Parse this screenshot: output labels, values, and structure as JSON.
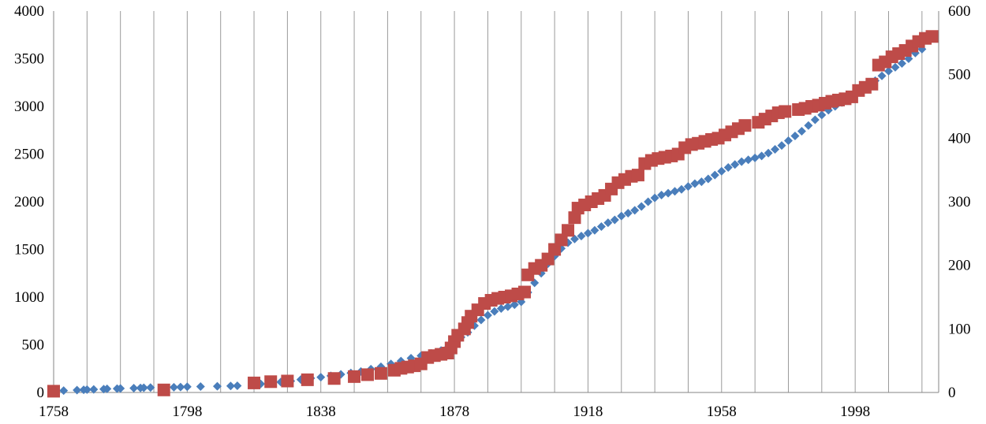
{
  "chart_data": {
    "type": "scatter",
    "title": "",
    "xlabel": "",
    "ylabel": "",
    "xlim": [
      1758,
      2023
    ],
    "ylim": [
      0,
      4000
    ],
    "y2lim": [
      0,
      600
    ],
    "x_ticks": [
      1758,
      1798,
      1838,
      1878,
      1918,
      1958,
      1998
    ],
    "y_ticks": [
      0,
      500,
      1000,
      1500,
      2000,
      2500,
      3000,
      3500,
      4000
    ],
    "y2_ticks": [
      0,
      100,
      200,
      300,
      400,
      500,
      600
    ],
    "vertical_gridlines_every": 10,
    "grid_x": true,
    "grid_y": false,
    "legend": "none",
    "series": [
      {
        "axis": "left",
        "marker": "diamond",
        "color": "#4a7ebb",
        "points": [
          [
            1761,
            20
          ],
          [
            1765,
            25
          ],
          [
            1767,
            28
          ],
          [
            1768,
            30
          ],
          [
            1770,
            32
          ],
          [
            1773,
            35
          ],
          [
            1774,
            38
          ],
          [
            1777,
            40
          ],
          [
            1778,
            42
          ],
          [
            1782,
            45
          ],
          [
            1784,
            48
          ],
          [
            1785,
            50
          ],
          [
            1787,
            52
          ],
          [
            1794,
            55
          ],
          [
            1796,
            57
          ],
          [
            1798,
            60
          ],
          [
            1802,
            62
          ],
          [
            1807,
            65
          ],
          [
            1811,
            68
          ],
          [
            1813,
            70
          ],
          [
            1818,
            80
          ],
          [
            1820,
            90
          ],
          [
            1823,
            100
          ],
          [
            1826,
            110
          ],
          [
            1829,
            120
          ],
          [
            1832,
            135
          ],
          [
            1835,
            150
          ],
          [
            1838,
            160
          ],
          [
            1841,
            175
          ],
          [
            1844,
            190
          ],
          [
            1847,
            205
          ],
          [
            1850,
            220
          ],
          [
            1853,
            245
          ],
          [
            1856,
            270
          ],
          [
            1859,
            300
          ],
          [
            1862,
            330
          ],
          [
            1865,
            360
          ],
          [
            1868,
            385
          ],
          [
            1871,
            410
          ],
          [
            1874,
            440
          ],
          [
            1876,
            470
          ],
          [
            1878,
            520
          ],
          [
            1880,
            580
          ],
          [
            1882,
            630
          ],
          [
            1884,
            700
          ],
          [
            1886,
            760
          ],
          [
            1888,
            810
          ],
          [
            1890,
            850
          ],
          [
            1892,
            880
          ],
          [
            1894,
            900
          ],
          [
            1896,
            920
          ],
          [
            1898,
            950
          ],
          [
            1900,
            1050
          ],
          [
            1902,
            1150
          ],
          [
            1904,
            1250
          ],
          [
            1906,
            1350
          ],
          [
            1908,
            1430
          ],
          [
            1910,
            1510
          ],
          [
            1912,
            1570
          ],
          [
            1914,
            1610
          ],
          [
            1916,
            1640
          ],
          [
            1918,
            1670
          ],
          [
            1920,
            1700
          ],
          [
            1922,
            1740
          ],
          [
            1924,
            1780
          ],
          [
            1926,
            1810
          ],
          [
            1928,
            1850
          ],
          [
            1930,
            1880
          ],
          [
            1932,
            1910
          ],
          [
            1934,
            1950
          ],
          [
            1936,
            2000
          ],
          [
            1938,
            2040
          ],
          [
            1940,
            2070
          ],
          [
            1942,
            2090
          ],
          [
            1944,
            2110
          ],
          [
            1946,
            2130
          ],
          [
            1948,
            2160
          ],
          [
            1950,
            2190
          ],
          [
            1952,
            2210
          ],
          [
            1954,
            2240
          ],
          [
            1956,
            2280
          ],
          [
            1958,
            2320
          ],
          [
            1960,
            2360
          ],
          [
            1962,
            2390
          ],
          [
            1964,
            2420
          ],
          [
            1966,
            2440
          ],
          [
            1968,
            2460
          ],
          [
            1970,
            2480
          ],
          [
            1972,
            2510
          ],
          [
            1974,
            2550
          ],
          [
            1976,
            2590
          ],
          [
            1978,
            2640
          ],
          [
            1980,
            2690
          ],
          [
            1982,
            2740
          ],
          [
            1984,
            2800
          ],
          [
            1986,
            2860
          ],
          [
            1988,
            2910
          ],
          [
            1990,
            2960
          ],
          [
            1992,
            3000
          ],
          [
            1994,
            3040
          ],
          [
            1996,
            3080
          ],
          [
            1998,
            3120
          ],
          [
            2000,
            3170
          ],
          [
            2002,
            3220
          ],
          [
            2004,
            3270
          ],
          [
            2006,
            3320
          ],
          [
            2008,
            3370
          ],
          [
            2010,
            3410
          ],
          [
            2012,
            3450
          ],
          [
            2014,
            3500
          ],
          [
            2016,
            3560
          ],
          [
            2018,
            3600
          ]
        ]
      },
      {
        "axis": "right",
        "marker": "square",
        "color": "#be4b48",
        "points": [
          [
            1758,
            2
          ],
          [
            1791,
            4
          ],
          [
            1818,
            15
          ],
          [
            1823,
            17
          ],
          [
            1828,
            18
          ],
          [
            1834,
            20
          ],
          [
            1842,
            22
          ],
          [
            1848,
            25
          ],
          [
            1852,
            28
          ],
          [
            1856,
            30
          ],
          [
            1860,
            35
          ],
          [
            1862,
            38
          ],
          [
            1864,
            40
          ],
          [
            1866,
            42
          ],
          [
            1868,
            45
          ],
          [
            1870,
            55
          ],
          [
            1872,
            58
          ],
          [
            1874,
            60
          ],
          [
            1876,
            62
          ],
          [
            1877,
            70
          ],
          [
            1878,
            80
          ],
          [
            1879,
            90
          ],
          [
            1881,
            100
          ],
          [
            1882,
            110
          ],
          [
            1883,
            120
          ],
          [
            1885,
            130
          ],
          [
            1887,
            140
          ],
          [
            1889,
            145
          ],
          [
            1891,
            148
          ],
          [
            1893,
            150
          ],
          [
            1895,
            152
          ],
          [
            1897,
            155
          ],
          [
            1899,
            158
          ],
          [
            1900,
            185
          ],
          [
            1902,
            195
          ],
          [
            1904,
            200
          ],
          [
            1906,
            210
          ],
          [
            1908,
            225
          ],
          [
            1910,
            240
          ],
          [
            1912,
            255
          ],
          [
            1914,
            275
          ],
          [
            1915,
            290
          ],
          [
            1917,
            295
          ],
          [
            1919,
            300
          ],
          [
            1921,
            305
          ],
          [
            1923,
            310
          ],
          [
            1925,
            320
          ],
          [
            1927,
            330
          ],
          [
            1929,
            335
          ],
          [
            1931,
            340
          ],
          [
            1933,
            342
          ],
          [
            1935,
            360
          ],
          [
            1937,
            365
          ],
          [
            1939,
            368
          ],
          [
            1941,
            370
          ],
          [
            1943,
            372
          ],
          [
            1945,
            375
          ],
          [
            1947,
            385
          ],
          [
            1949,
            390
          ],
          [
            1951,
            392
          ],
          [
            1953,
            395
          ],
          [
            1955,
            398
          ],
          [
            1957,
            400
          ],
          [
            1959,
            405
          ],
          [
            1961,
            410
          ],
          [
            1963,
            415
          ],
          [
            1965,
            420
          ],
          [
            1969,
            425
          ],
          [
            1971,
            430
          ],
          [
            1973,
            435
          ],
          [
            1975,
            440
          ],
          [
            1977,
            442
          ],
          [
            1981,
            445
          ],
          [
            1983,
            447
          ],
          [
            1985,
            450
          ],
          [
            1987,
            452
          ],
          [
            1989,
            455
          ],
          [
            1991,
            458
          ],
          [
            1993,
            460
          ],
          [
            1995,
            462
          ],
          [
            1997,
            465
          ],
          [
            1999,
            475
          ],
          [
            2001,
            480
          ],
          [
            2003,
            485
          ],
          [
            2005,
            515
          ],
          [
            2007,
            520
          ],
          [
            2009,
            528
          ],
          [
            2011,
            533
          ],
          [
            2013,
            538
          ],
          [
            2015,
            545
          ],
          [
            2017,
            552
          ],
          [
            2019,
            557
          ],
          [
            2021,
            560
          ]
        ]
      }
    ]
  }
}
